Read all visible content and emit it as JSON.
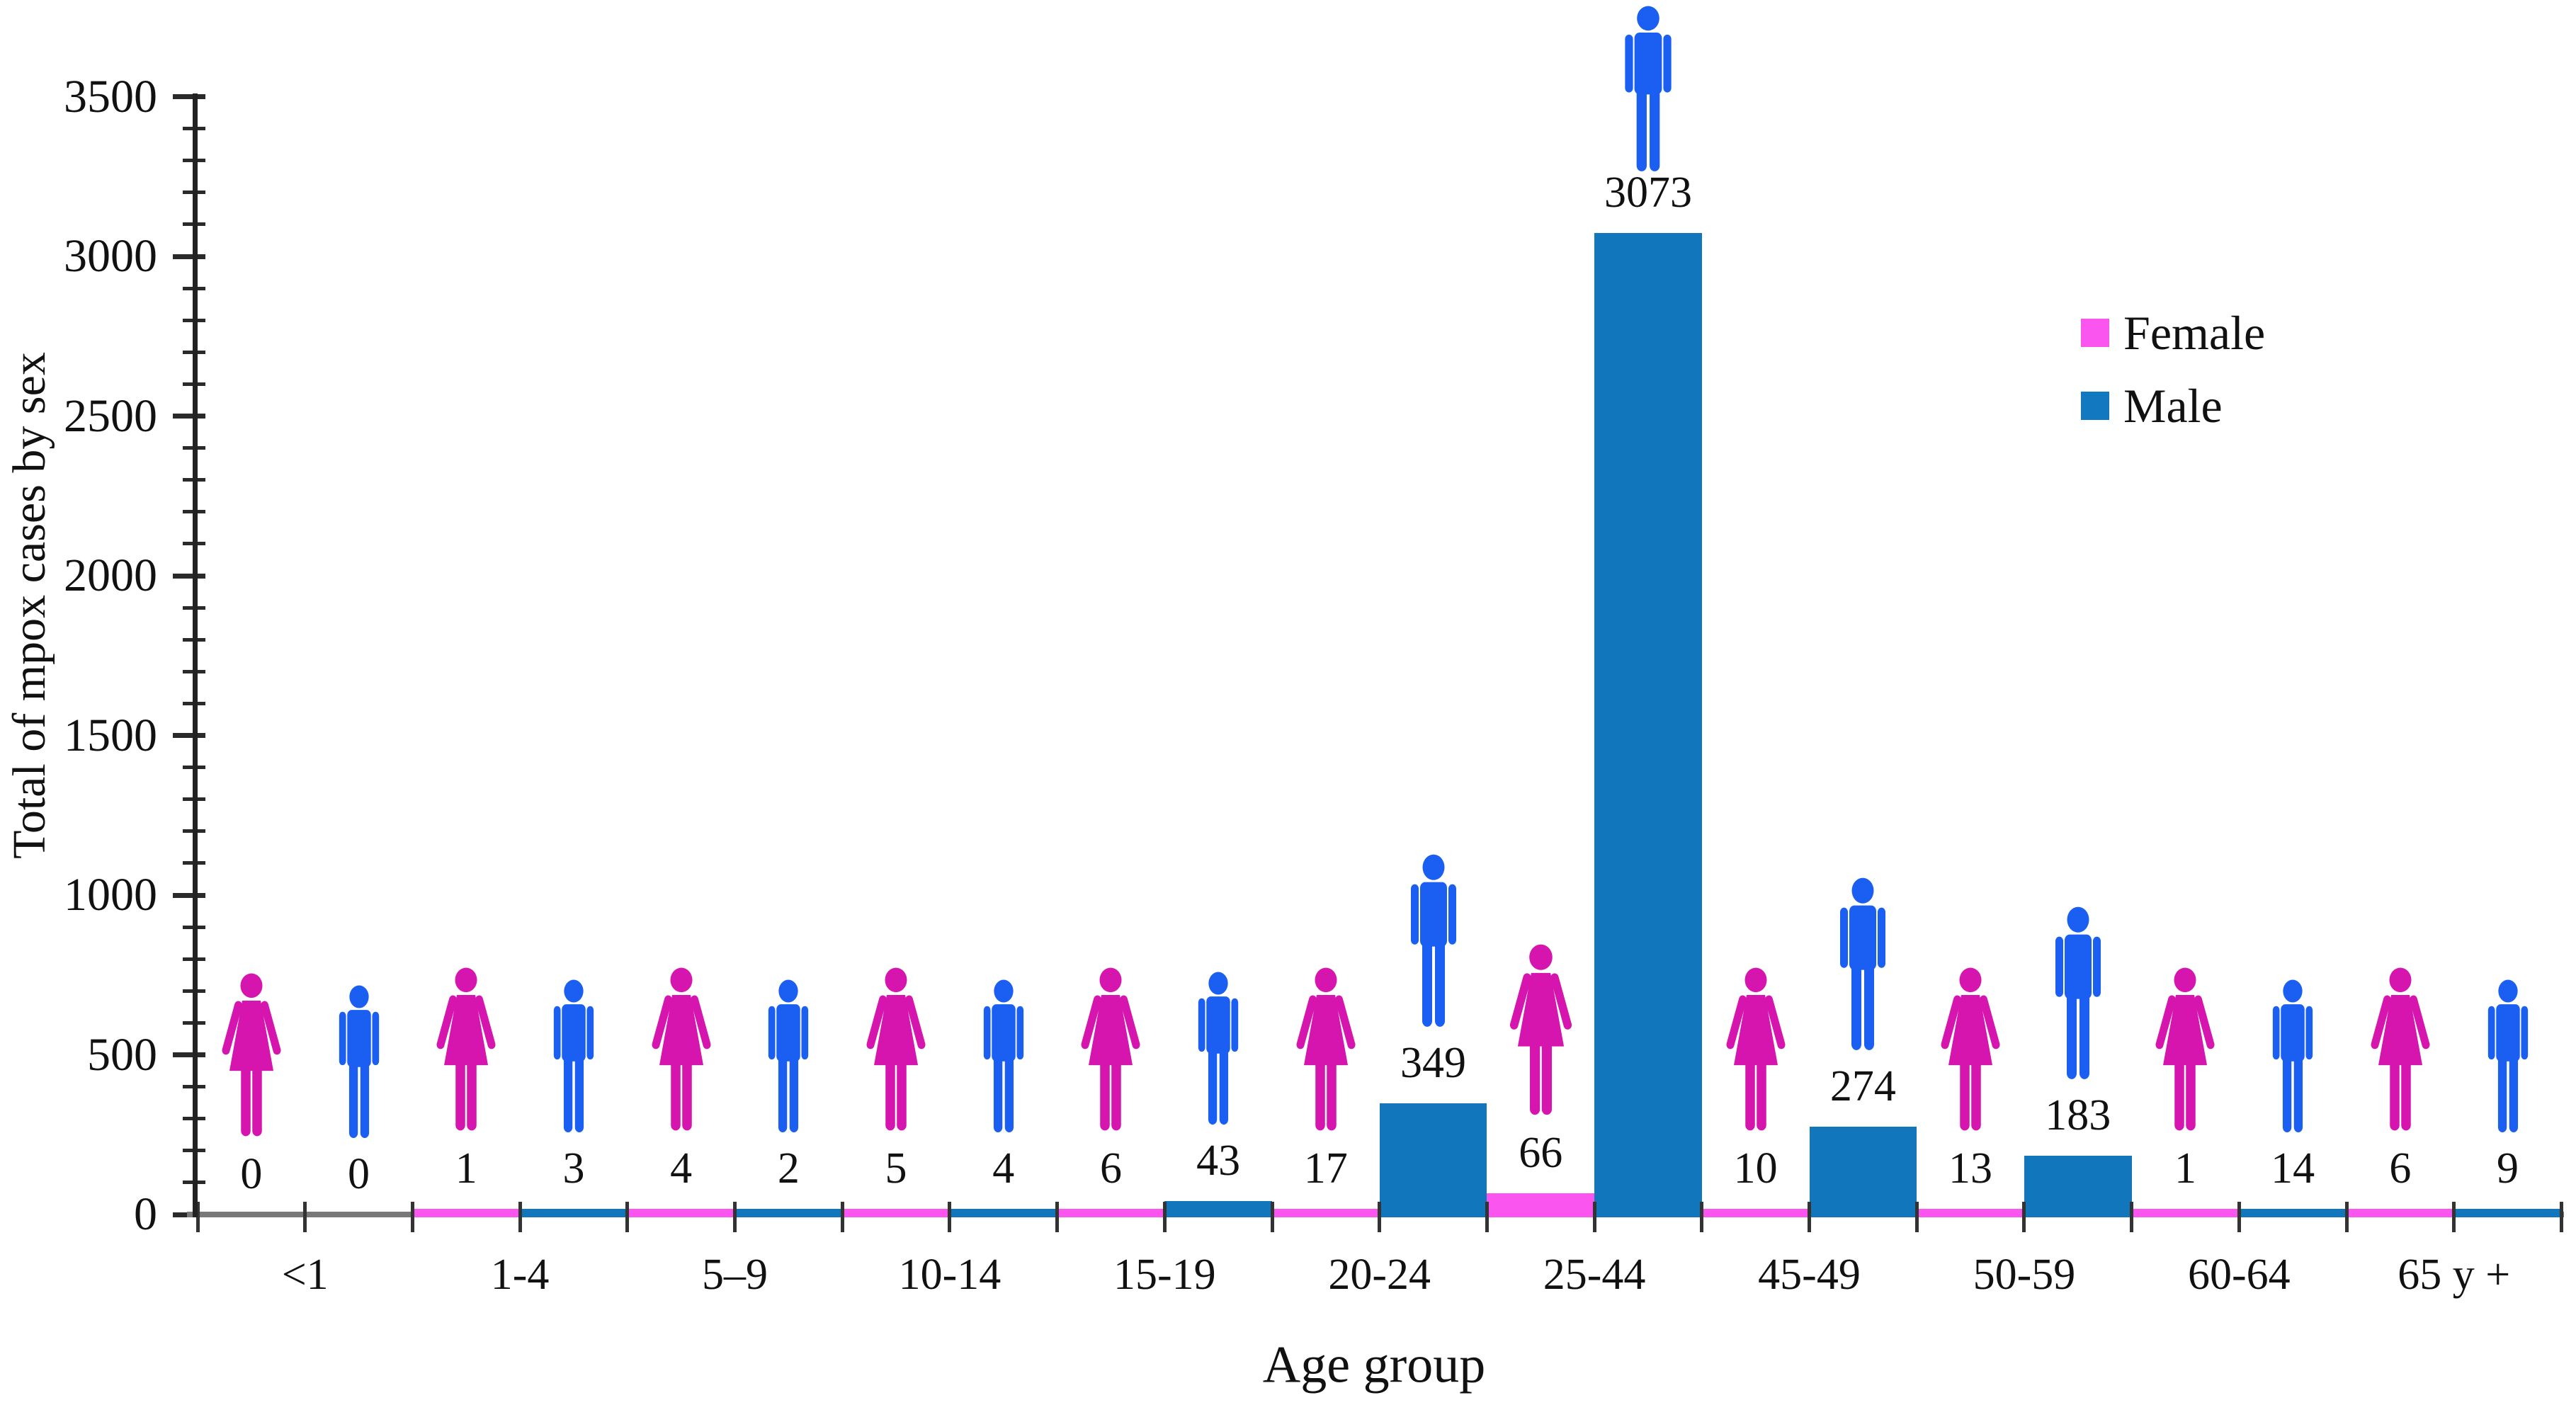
{
  "chart_data": {
    "type": "bar",
    "title": "",
    "xlabel": "Age group",
    "ylabel": "Total of mpox cases by sex",
    "categories": [
      "<1",
      "1-4",
      "5–9",
      "10-14",
      "15-19",
      "20-24",
      "25-44",
      "45-49",
      "50-59",
      "60-64",
      "65 y +"
    ],
    "series": [
      {
        "name": "Female",
        "bar_color": "#fa55ee",
        "icon_color": "#d614ae",
        "values": [
          0,
          1,
          4,
          5,
          6,
          17,
          66,
          10,
          13,
          1,
          6
        ]
      },
      {
        "name": "Male",
        "bar_color": "#1176bc",
        "icon_color": "#1b5ff2",
        "values": [
          0,
          3,
          2,
          4,
          43,
          349,
          3073,
          274,
          183,
          14,
          9
        ]
      }
    ],
    "ylim": [
      0,
      3500
    ],
    "ytick_major_interval": 500,
    "ytick_minor_interval": 100,
    "grid": false,
    "legend_position": "upper right",
    "pictograms": "female and male person icons above each value"
  },
  "legend": {
    "items": [
      {
        "label": "Female",
        "color": "#fa55ee"
      },
      {
        "label": "Male",
        "color": "#1278bf"
      }
    ]
  }
}
